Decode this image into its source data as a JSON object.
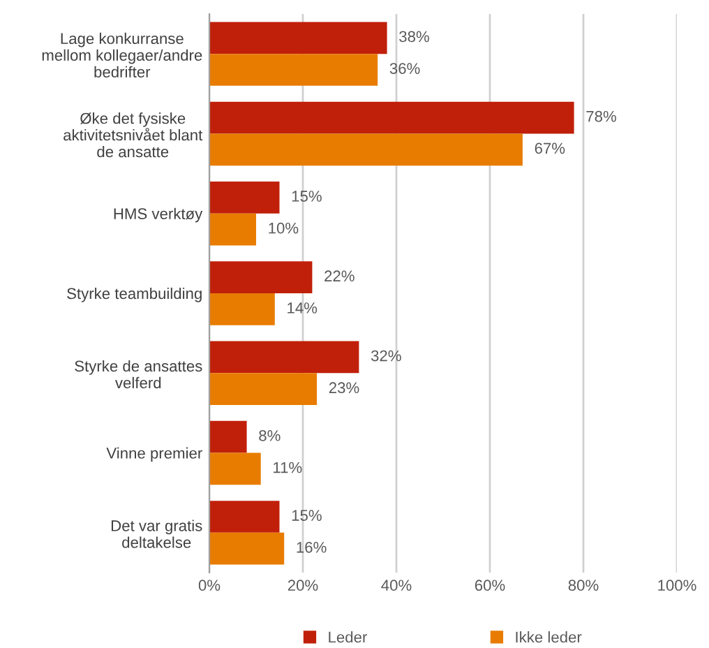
{
  "chart_data": {
    "type": "bar",
    "orientation": "horizontal",
    "categories": [
      "Lage konkurranse\nmellom kollegaer/andre\nbedrifter",
      "Øke det fysiske\naktivitetsnivået blant\nde ansatte",
      "HMS verktøy",
      "Styrke teambuilding",
      "Styrke de ansattes\nvelferd",
      "Vinne premier",
      "Det var gratis\ndeltakelse"
    ],
    "series": [
      {
        "name": "Leder",
        "color": "#c0200a",
        "values": [
          38,
          78,
          15,
          22,
          32,
          8,
          15
        ],
        "value_labels": [
          "38%",
          "78%",
          "15%",
          "22%",
          "32%",
          "8%",
          "15%"
        ]
      },
      {
        "name": "Ikke leder",
        "color": "#e87c00",
        "values": [
          36,
          67,
          10,
          14,
          23,
          11,
          16
        ],
        "value_labels": [
          "36%",
          "67%",
          "10%",
          "14%",
          "23%",
          "11%",
          "16%"
        ]
      }
    ],
    "xlim": [
      0,
      100
    ],
    "xticks": [
      {
        "value": 0,
        "label": "0%"
      },
      {
        "value": 20,
        "label": "20%"
      },
      {
        "value": 40,
        "label": "40%"
      },
      {
        "value": 60,
        "label": "60%"
      },
      {
        "value": 80,
        "label": "80%"
      },
      {
        "value": 100,
        "label": "100%"
      }
    ],
    "grid": "x",
    "legend": "bottom"
  }
}
